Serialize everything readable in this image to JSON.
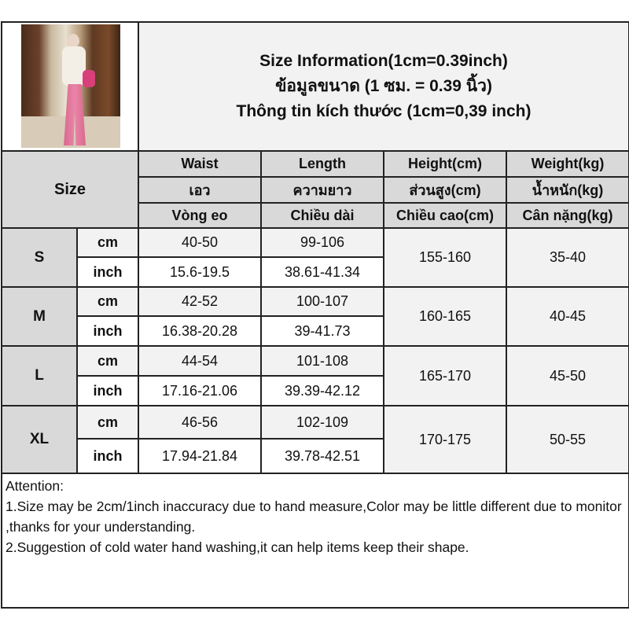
{
  "title": {
    "line1": "Size Information(1cm=0.39inch)",
    "line2": "ข้อมูลขนาด (1 ซม. = 0.39 นิ้ว)",
    "line3": "Thông tin kích thước (1cm=0,39 inch)"
  },
  "header": {
    "size": "Size",
    "columns": [
      [
        "Waist",
        "เอว",
        "Vòng eo"
      ],
      [
        "Length",
        "ความยาว",
        "Chiều dài"
      ],
      [
        "Height(cm)",
        "ส่วนสูง(cm)",
        "Chiều cao(cm)"
      ],
      [
        "Weight(kg)",
        "น้ำหนัก(kg)",
        "Cân nặng(kg)"
      ]
    ]
  },
  "rows": [
    {
      "size": "S",
      "cm_label": "cm",
      "inch_label": "inch",
      "waist_cm": "40-50",
      "length_cm": "99-106",
      "waist_inch": "15.6-19.5",
      "length_inch": "38.61-41.34",
      "height": "155-160",
      "weight": "35-40"
    },
    {
      "size": "M",
      "cm_label": "cm",
      "inch_label": "inch",
      "waist_cm": "42-52",
      "length_cm": "100-107",
      "waist_inch": "16.38-20.28",
      "length_inch": "39-41.73",
      "height": "160-165",
      "weight": "40-45"
    },
    {
      "size": "L",
      "cm_label": "cm",
      "inch_label": "inch",
      "waist_cm": "44-54",
      "length_cm": "101-108",
      "waist_inch": "17.16-21.06",
      "length_inch": "39.39-42.12",
      "height": "165-170",
      "weight": "45-50"
    },
    {
      "size": "XL",
      "cm_label": "cm",
      "inch_label": "inch",
      "waist_cm": "46-56",
      "length_cm": "102-109",
      "waist_inch": "17.94-21.84",
      "length_inch": "39.78-42.51",
      "height": "170-175",
      "weight": "50-55"
    }
  ],
  "notes": {
    "heading": "Attention:",
    "items": [
      "1.Size may be 2cm/1inch inaccuracy due to hand measure,Color may be little different due to monitor ,thanks for your understanding.",
      "2.Suggestion of cold water hand washing,it can help items keep their shape."
    ]
  },
  "colors": {
    "header_gray": "#d9d9d9",
    "light_gray": "#f2f2f2",
    "border": "#222222"
  }
}
